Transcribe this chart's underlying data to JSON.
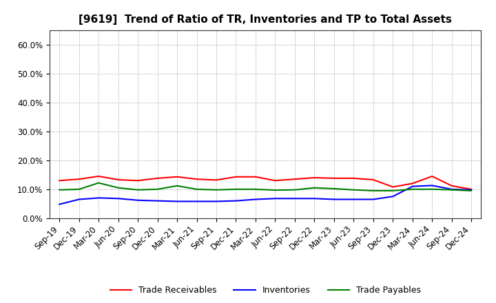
{
  "title": "[9619]  Trend of Ratio of TR, Inventories and TP to Total Assets",
  "x_labels": [
    "Sep-19",
    "Dec-19",
    "Mar-20",
    "Jun-20",
    "Sep-20",
    "Dec-20",
    "Mar-21",
    "Jun-21",
    "Sep-21",
    "Dec-21",
    "Mar-22",
    "Jun-22",
    "Sep-22",
    "Dec-22",
    "Mar-23",
    "Jun-23",
    "Sep-23",
    "Dec-23",
    "Mar-24",
    "Jun-24",
    "Sep-24",
    "Dec-24"
  ],
  "trade_receivables": [
    0.13,
    0.135,
    0.145,
    0.133,
    0.13,
    0.138,
    0.143,
    0.135,
    0.132,
    0.143,
    0.143,
    0.13,
    0.135,
    0.14,
    0.138,
    0.138,
    0.133,
    0.108,
    0.12,
    0.145,
    0.112,
    0.1
  ],
  "inventories": [
    0.048,
    0.065,
    0.07,
    0.068,
    0.062,
    0.06,
    0.058,
    0.058,
    0.058,
    0.06,
    0.065,
    0.068,
    0.068,
    0.068,
    0.065,
    0.065,
    0.065,
    0.075,
    0.11,
    0.113,
    0.1,
    0.098
  ],
  "trade_payables": [
    0.098,
    0.1,
    0.122,
    0.105,
    0.098,
    0.1,
    0.112,
    0.1,
    0.098,
    0.1,
    0.1,
    0.097,
    0.098,
    0.105,
    0.102,
    0.098,
    0.095,
    0.095,
    0.1,
    0.1,
    0.098,
    0.095
  ],
  "ylim": [
    0.0,
    0.65
  ],
  "yticks": [
    0.0,
    0.1,
    0.2,
    0.3,
    0.4,
    0.5,
    0.6
  ],
  "line_colors": {
    "trade_receivables": "#FF0000",
    "inventories": "#0000FF",
    "trade_payables": "#008000"
  },
  "legend_labels": [
    "Trade Receivables",
    "Inventories",
    "Trade Payables"
  ],
  "background_color": "#FFFFFF",
  "grid_color": "#888888",
  "title_fontsize": 11,
  "tick_fontsize": 8.5,
  "legend_fontsize": 9
}
